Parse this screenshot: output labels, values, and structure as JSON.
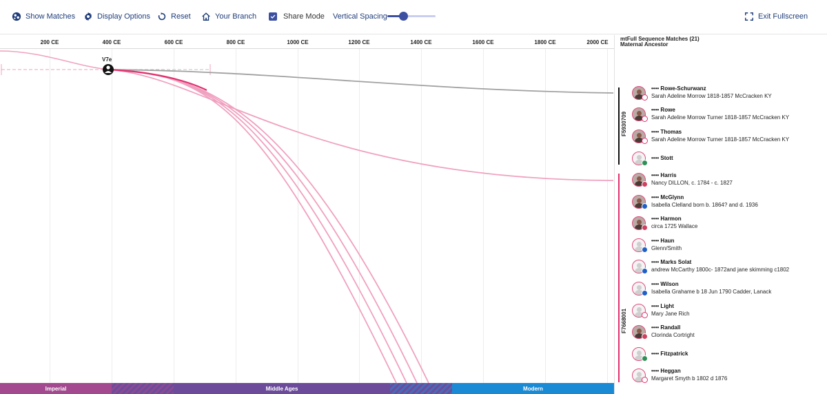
{
  "toolbar": {
    "show_matches": "Show Matches",
    "display_options": "Display Options",
    "reset": "Reset",
    "your_branch": "Your Branch",
    "share_mode": "Share Mode",
    "vertical_spacing": "Vertical Spacing",
    "vertical_spacing_level": 0.33,
    "exit_fullscreen": "Exit Fullscreen",
    "share_mode_checked": true
  },
  "axis": {
    "ticks": [
      "200 CE",
      "400 CE",
      "600 CE",
      "800 CE",
      "1000 CE",
      "1200 CE",
      "1400 CE",
      "1600 CE",
      "1800 CE",
      "2000 CE"
    ]
  },
  "right_header": {
    "line1": "mtFull Sequence Matches (21)",
    "line2": "Maternal Ancestor"
  },
  "haplogroup": "V7e",
  "groups": [
    {
      "label": "F5930709",
      "color": "#111111"
    },
    {
      "label": "F7668001",
      "color": "#e0306e"
    }
  ],
  "matches": [
    {
      "name": "•••• Rowe-Schurwanz",
      "ancestor": "Sarah Adeline Morrow 1818-1857 McCracken KY",
      "avatar": "photo",
      "flag": "england"
    },
    {
      "name": "•••• Rowe",
      "ancestor": "Sarah Adeline Morrow Turner 1818-1857 McCracken KY",
      "avatar": "photo",
      "flag": "england"
    },
    {
      "name": "•••• Thomas",
      "ancestor": "Sarah Adeline Morrow Turner 1818-1857 McCracken KY",
      "avatar": "photo",
      "flag": "england"
    },
    {
      "name": "•••• Stott",
      "ancestor": "",
      "avatar": "default",
      "flag": "ireland"
    },
    {
      "name": "•••• Harris",
      "ancestor": "Nancy DILLON, c. 1784 - c. 1827",
      "avatar": "photo",
      "flag": "usa"
    },
    {
      "name": "•••• McGlynn",
      "ancestor": "Isabella Clelland born b. 1864? and d. 1936",
      "avatar": "photo",
      "flag": "scotland"
    },
    {
      "name": "•••• Harmon",
      "ancestor": "circa 1725 Wallace",
      "avatar": "photo",
      "flag": "usa"
    },
    {
      "name": "•••• Haun",
      "ancestor": "Glenn/Smith",
      "avatar": "default",
      "flag": "scotland"
    },
    {
      "name": "•••• Marks Solat",
      "ancestor": "andrew McCarthy 1800c- 1872and jane skimming c1802",
      "avatar": "default",
      "flag": "scotland"
    },
    {
      "name": "•••• Wilson",
      "ancestor": "Isabella Grahame b 18 Jun 1790 Cadder, Lanack",
      "avatar": "default",
      "flag": "scotland"
    },
    {
      "name": "•••• Light",
      "ancestor": "Mary Jane Rich",
      "avatar": "default",
      "flag": "england"
    },
    {
      "name": "•••• Randall",
      "ancestor": "Clorinda Cortright",
      "avatar": "photo",
      "flag": "usa"
    },
    {
      "name": "•••• Fitzpatrick",
      "ancestor": "",
      "avatar": "default",
      "flag": "ireland"
    },
    {
      "name": "•••• Heggan",
      "ancestor": "Margaret Smyth b 1802 d 1876",
      "avatar": "default",
      "flag": "england"
    }
  ],
  "eras": [
    {
      "label": "Imperial",
      "color": "#a2498f"
    },
    {
      "label": "Middle Ages",
      "color": "#6b4b9a"
    },
    {
      "label": "Modern",
      "color": "#1a8ad4"
    }
  ],
  "colors": {
    "accent": "#3c4fa0",
    "toolbar_text": "#1f3d7a",
    "line_pink": "#f0a0bf",
    "line_magenta": "#e0306e",
    "line_grey": "#a0a0a0"
  }
}
